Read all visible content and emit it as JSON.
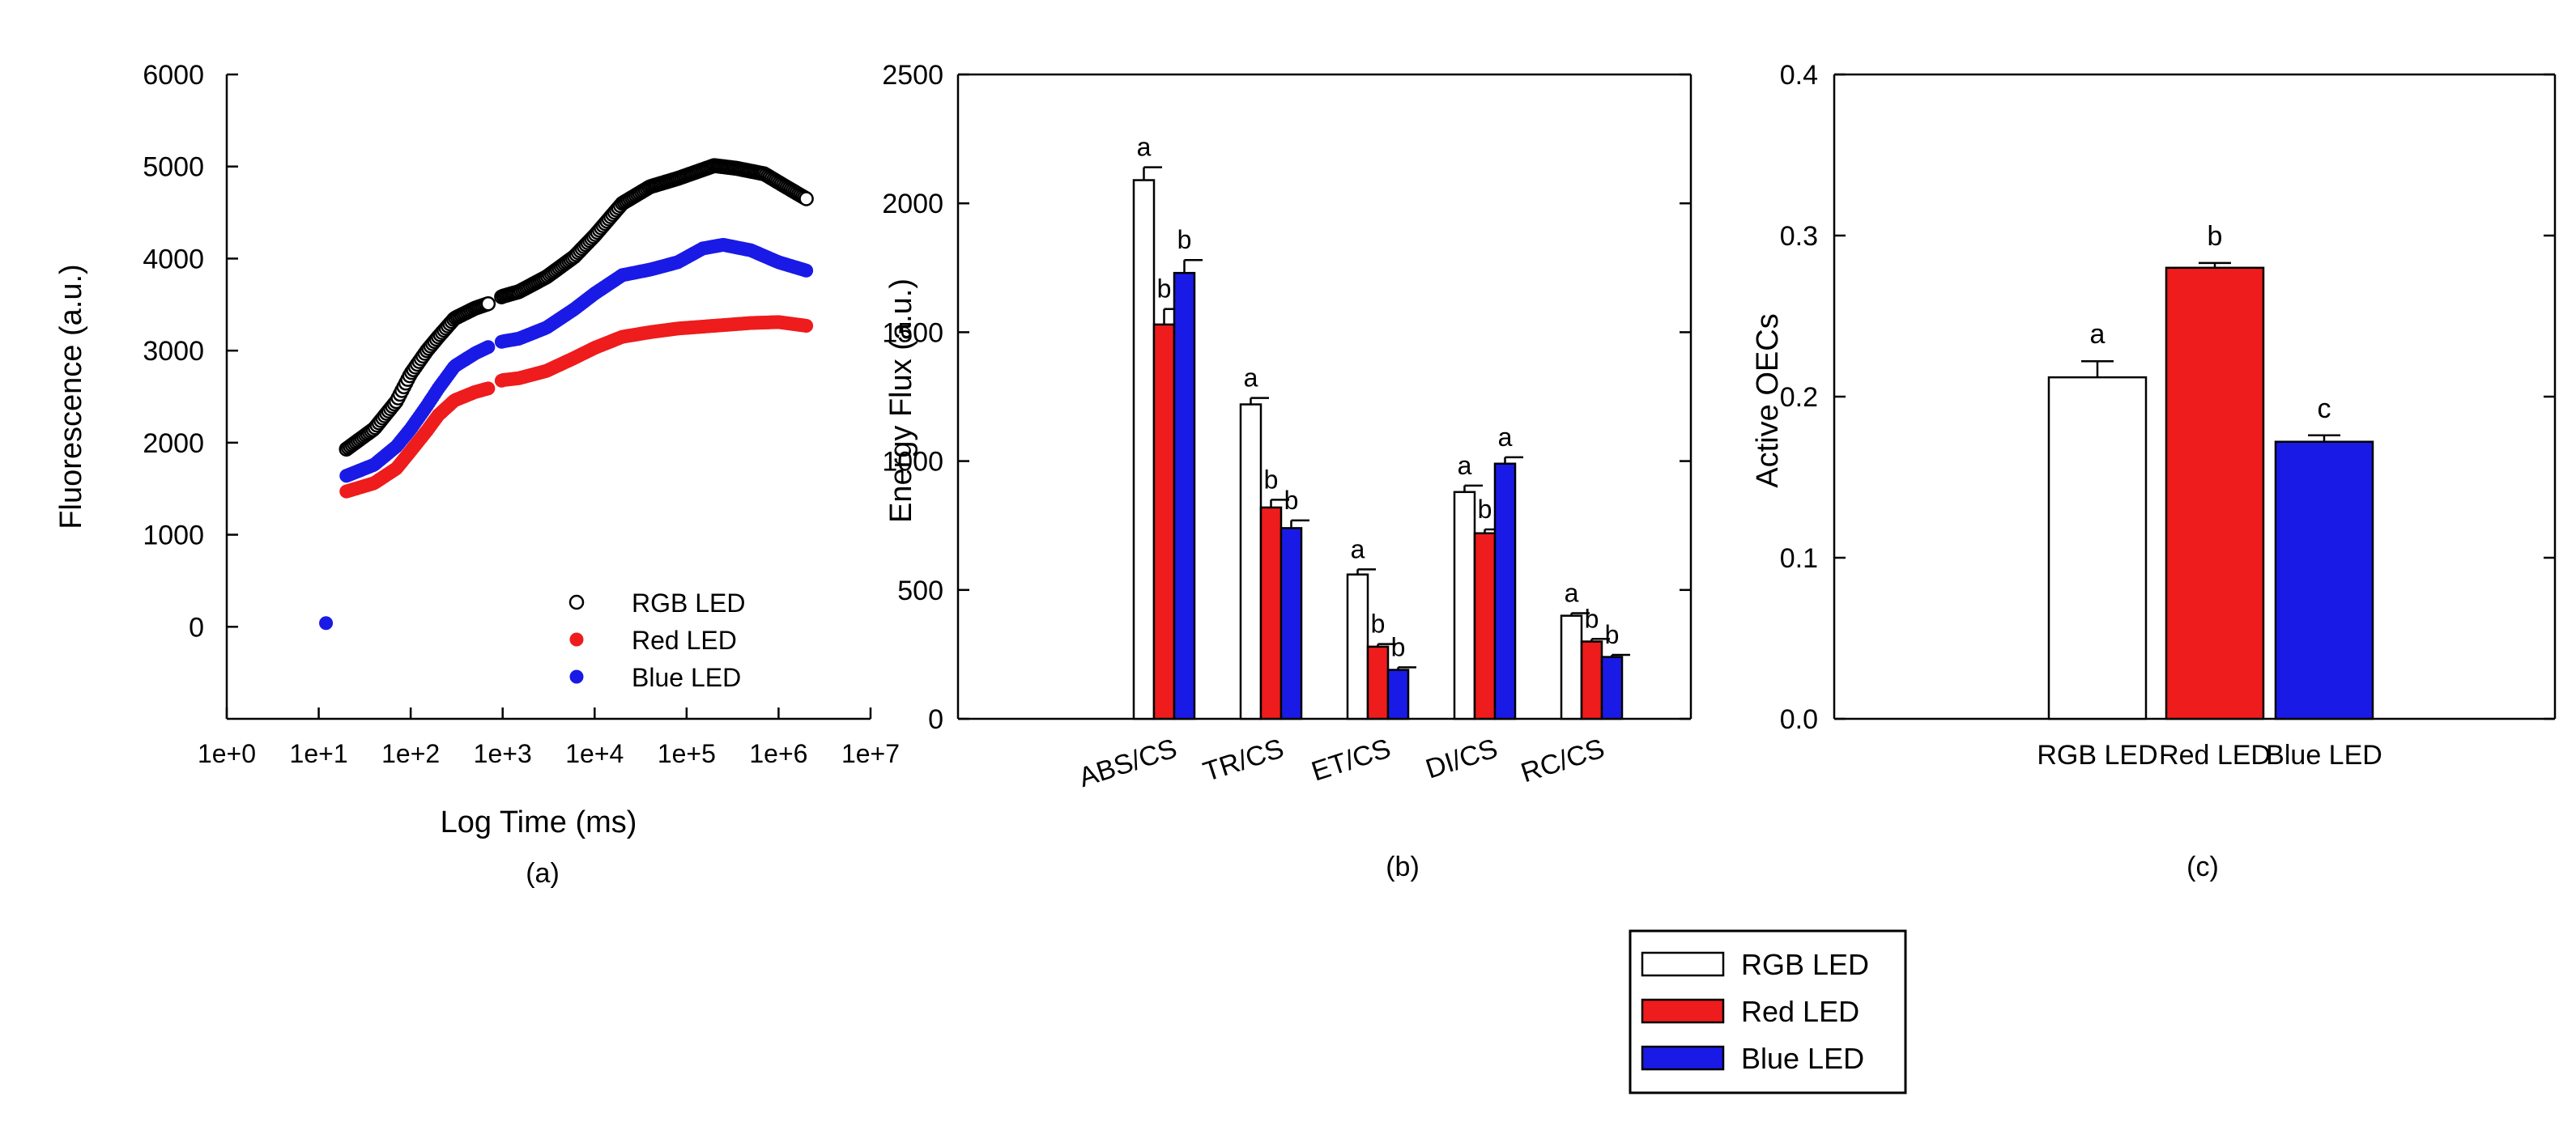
{
  "colors": {
    "rgb": "#ffffff",
    "red": "#ee1c1c",
    "blue": "#1a1ae6",
    "scatter_rgb": "#000000"
  },
  "legend_shared": {
    "items": [
      "RGB LED",
      "Red LED",
      "Blue LED"
    ]
  },
  "chart_data": [
    {
      "type": "scatter",
      "panel_label": "(a)",
      "xlabel": "Log Time (ms)",
      "ylabel": "Fluorescence (a.u.)",
      "xscale": "log",
      "xlim": [
        1,
        10000000
      ],
      "ylim": [
        -1000,
        6000
      ],
      "xticks": [
        "1e+0",
        "1e+1",
        "1e+2",
        "1e+3",
        "1e+4",
        "1e+5",
        "1e+6",
        "1e+7"
      ],
      "yticks": [
        "0",
        "1000",
        "2000",
        "3000",
        "4000",
        "5000",
        "6000"
      ],
      "legend": {
        "placement": "bottom-right",
        "items": [
          "RGB LED",
          "Red LED",
          "Blue LED"
        ]
      },
      "series": [
        {
          "name": "RGB LED",
          "style": "open-circle",
          "points": [
            [
              20,
              1930
            ],
            [
              40,
              2150
            ],
            [
              70,
              2450
            ],
            [
              100,
              2750
            ],
            [
              150,
              3000
            ],
            [
              200,
              3150
            ],
            [
              300,
              3350
            ],
            [
              500,
              3460
            ],
            [
              700,
              3510
            ],
            [
              1000,
              3590
            ],
            [
              1500,
              3640
            ],
            [
              3000,
              3800
            ],
            [
              6000,
              4020
            ],
            [
              10000,
              4250
            ],
            [
              20000,
              4600
            ],
            [
              40000,
              4780
            ],
            [
              80000,
              4870
            ],
            [
              200000,
              5010
            ],
            [
              350000,
              4980
            ],
            [
              700000,
              4920
            ],
            [
              1200000,
              4780
            ],
            [
              2000000,
              4650
            ]
          ]
        },
        {
          "name": "Red LED",
          "style": "filled-red",
          "points": [
            [
              20,
              1470
            ],
            [
              40,
              1560
            ],
            [
              70,
              1720
            ],
            [
              100,
              1910
            ],
            [
              150,
              2130
            ],
            [
              200,
              2300
            ],
            [
              300,
              2460
            ],
            [
              500,
              2550
            ],
            [
              700,
              2590
            ],
            [
              1000,
              2680
            ],
            [
              1500,
              2700
            ],
            [
              3000,
              2780
            ],
            [
              6000,
              2920
            ],
            [
              10000,
              3030
            ],
            [
              20000,
              3150
            ],
            [
              40000,
              3200
            ],
            [
              80000,
              3240
            ],
            [
              200000,
              3270
            ],
            [
              500000,
              3300
            ],
            [
              1000000,
              3310
            ],
            [
              2000000,
              3270
            ]
          ]
        },
        {
          "name": "Blue LED",
          "style": "filled-blue",
          "points": [
            [
              20,
              1640
            ],
            [
              40,
              1760
            ],
            [
              70,
              1960
            ],
            [
              100,
              2150
            ],
            [
              150,
              2400
            ],
            [
              200,
              2590
            ],
            [
              300,
              2830
            ],
            [
              500,
              2970
            ],
            [
              700,
              3040
            ],
            [
              1000,
              3100
            ],
            [
              1500,
              3130
            ],
            [
              3000,
              3250
            ],
            [
              6000,
              3450
            ],
            [
              10000,
              3620
            ],
            [
              20000,
              3820
            ],
            [
              40000,
              3880
            ],
            [
              80000,
              3960
            ],
            [
              150000,
              4110
            ],
            [
              250000,
              4150
            ],
            [
              500000,
              4090
            ],
            [
              1000000,
              3960
            ],
            [
              2000000,
              3870
            ]
          ]
        }
      ],
      "extra_points": [
        {
          "name": "Blue LED",
          "x": 12,
          "y": 40
        }
      ]
    },
    {
      "type": "bar",
      "panel_label": "(b)",
      "xlabel": "",
      "ylabel": "Energy Flux (a.u.)",
      "ylim": [
        0,
        2500
      ],
      "yticks": [
        "0",
        "500",
        "1000",
        "1500",
        "2000",
        "2500"
      ],
      "categories": [
        "ABS/CS",
        "TR/CS",
        "ET/CS",
        "DI/CS",
        "RC/CS"
      ],
      "series": [
        {
          "name": "RGB LED",
          "values": [
            2090,
            1220,
            560,
            880,
            400
          ],
          "errors": [
            50,
            25,
            20,
            25,
            10
          ],
          "letters": [
            "a",
            "a",
            "a",
            "a",
            "a"
          ]
        },
        {
          "name": "Red LED",
          "values": [
            1530,
            820,
            280,
            720,
            300
          ],
          "errors": [
            60,
            30,
            10,
            15,
            10
          ],
          "letters": [
            "b",
            "b",
            "b",
            "b",
            "b"
          ]
        },
        {
          "name": "Blue LED",
          "values": [
            1730,
            740,
            190,
            990,
            240
          ],
          "errors": [
            50,
            30,
            10,
            25,
            8
          ],
          "letters": [
            "b",
            "b",
            "b",
            "a",
            "b"
          ]
        }
      ]
    },
    {
      "type": "bar",
      "panel_label": "(c)",
      "xlabel": "",
      "ylabel": "Active OECs",
      "ylim": [
        0,
        0.4
      ],
      "yticks": [
        "0.0",
        "0.1",
        "0.2",
        "0.3",
        "0.4"
      ],
      "categories": [
        "RGB LED",
        "Red LED",
        "Blue LED"
      ],
      "values": [
        0.212,
        0.28,
        0.172
      ],
      "errors": [
        0.01,
        0.003,
        0.004
      ],
      "letters": [
        "a",
        "b",
        "c"
      ]
    }
  ]
}
